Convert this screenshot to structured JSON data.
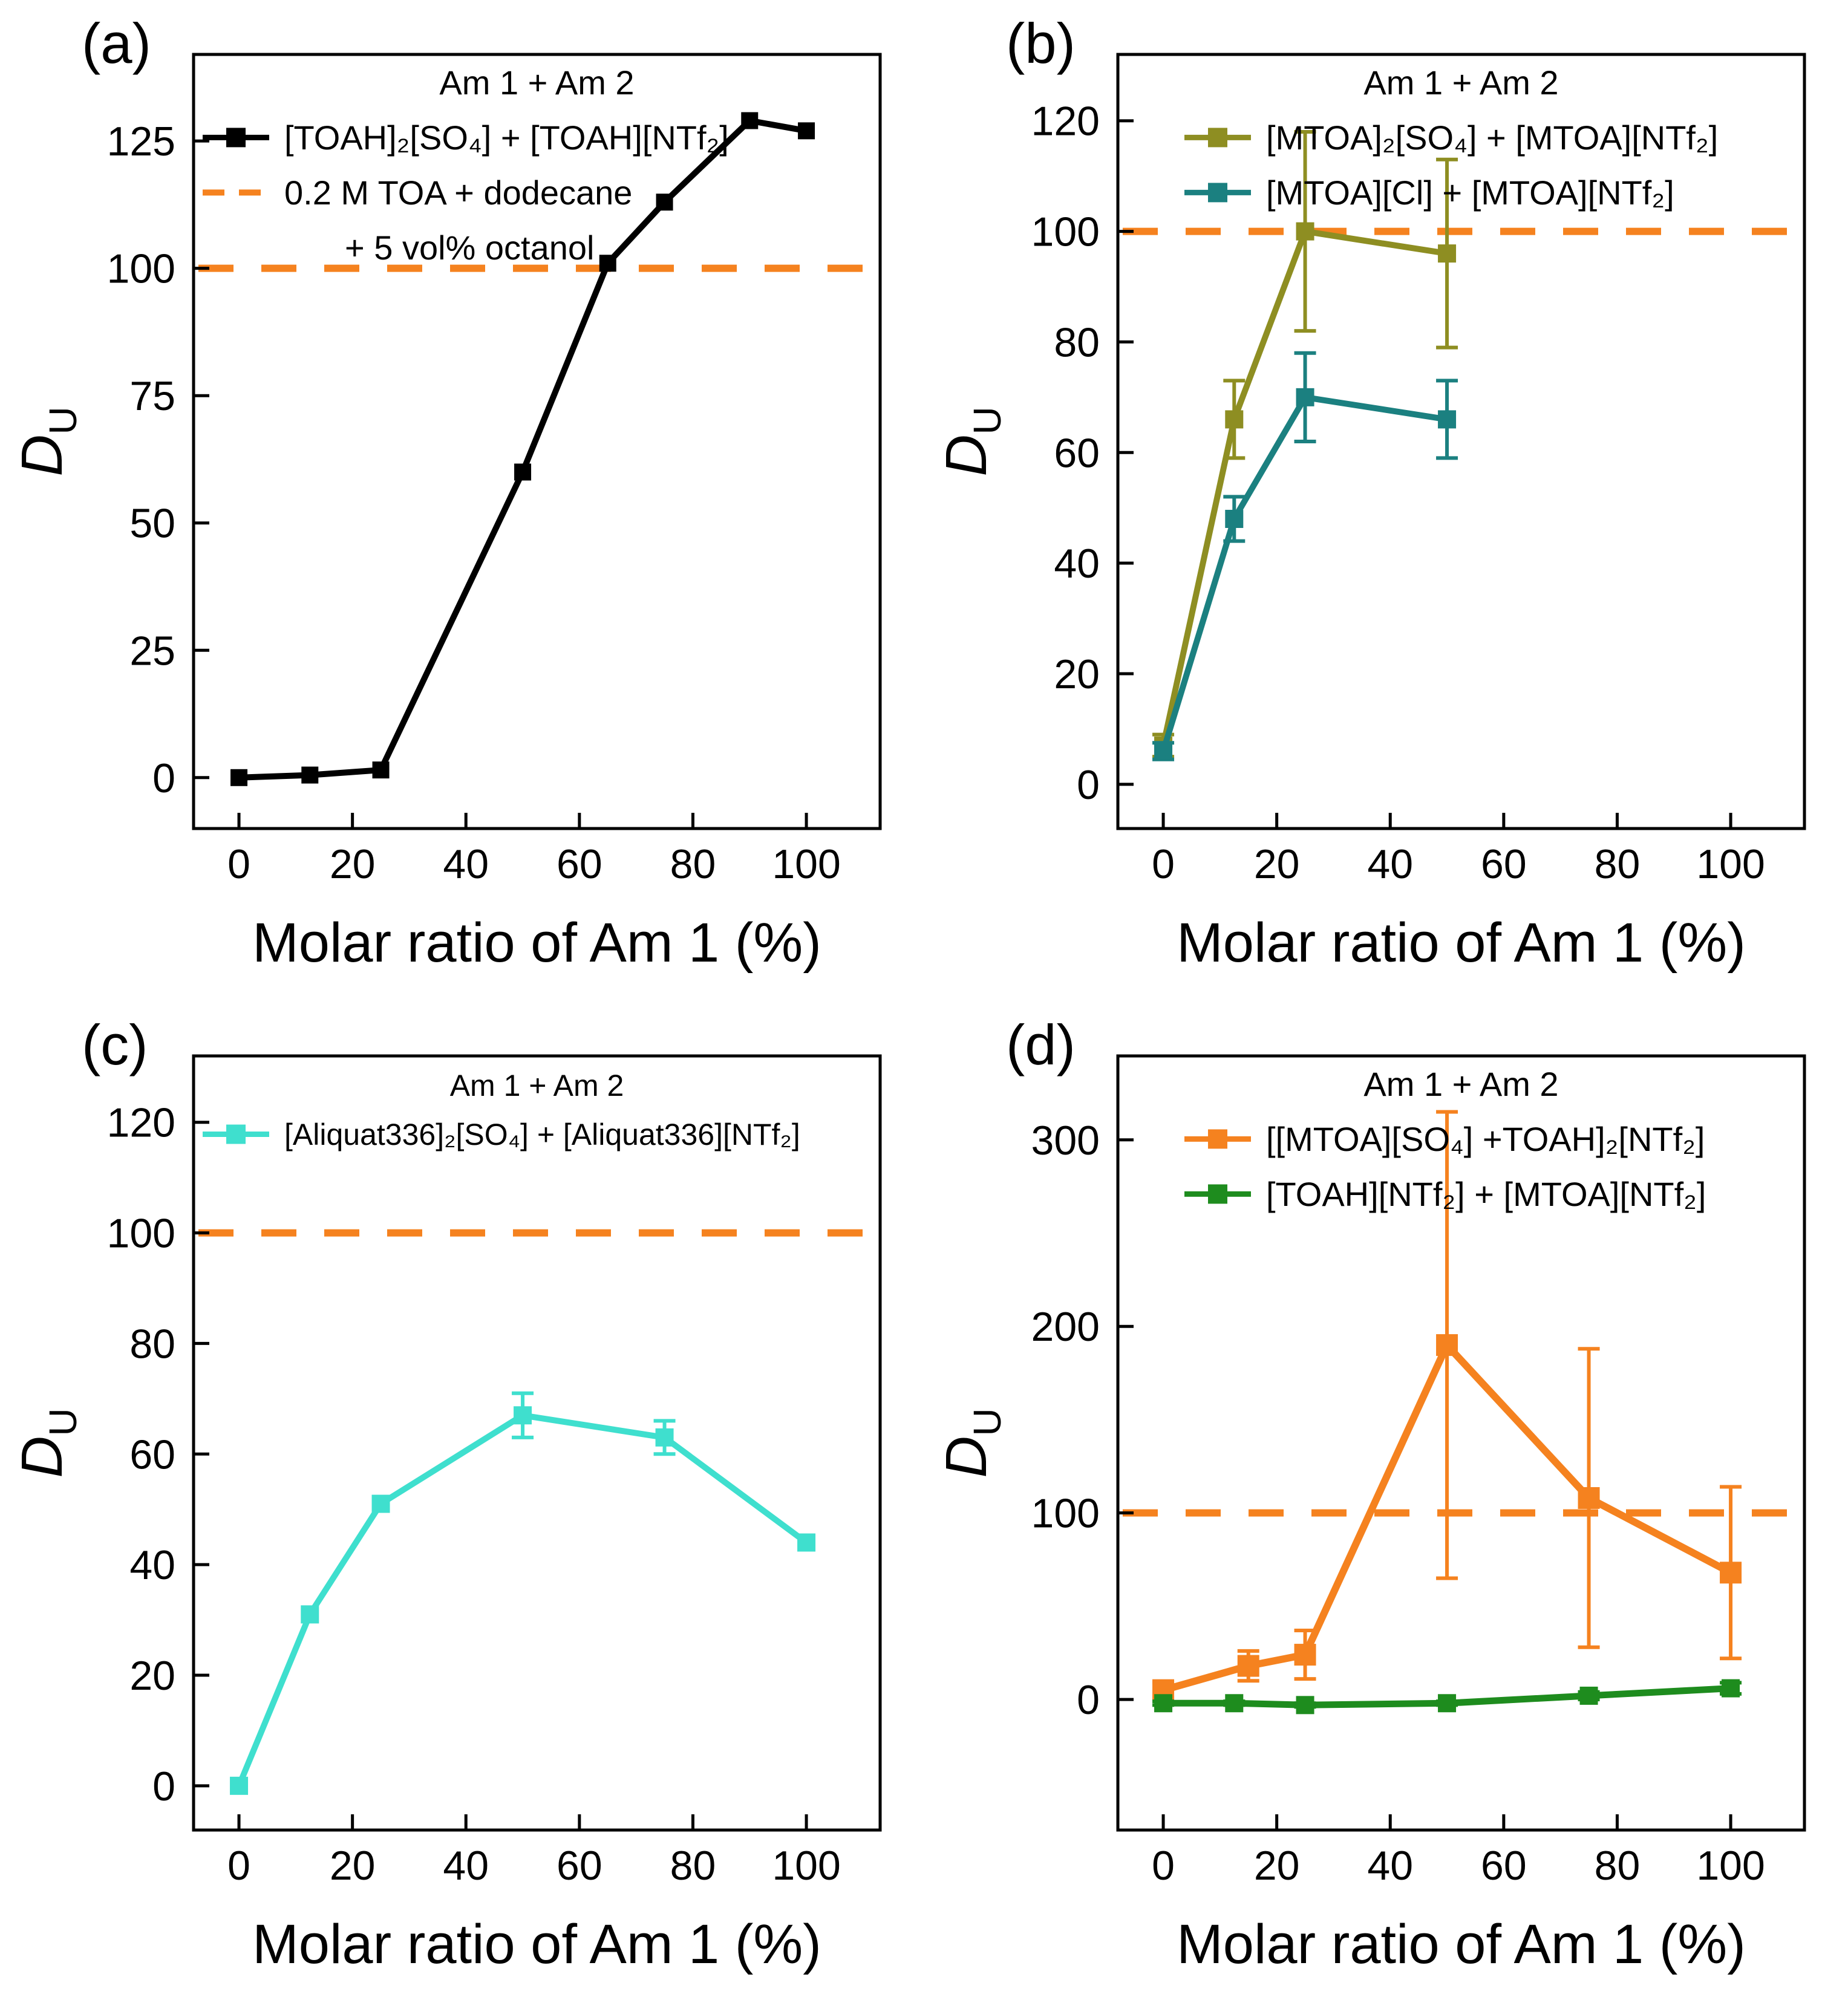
{
  "figure": {
    "background": "#ffffff",
    "xlabel": "Molar ratio of Am 1 (%)",
    "reference_color": "#F5821F"
  },
  "chart_data": [
    {
      "panel_label": "(a)",
      "type": "line",
      "xlabel": "Molar ratio of Am 1 (%)",
      "ylabel": "D",
      "ylabel_sub": "U",
      "xlim": [
        -8,
        113
      ],
      "ylim": [
        -10,
        142
      ],
      "xticks": [
        0,
        20,
        40,
        60,
        80,
        100
      ],
      "yticks": [
        0,
        25,
        50,
        75,
        100,
        125
      ],
      "ref_line": {
        "y": 100,
        "color": "#F5821F"
      },
      "series": [
        {
          "name": "[TOAH]₂[SO₄] + [TOAH][NTf₂]",
          "color": "#000000",
          "line_width": 10,
          "marker_size": 28,
          "x": [
            0,
            12.5,
            25,
            50,
            65,
            75,
            90,
            100
          ],
          "y": [
            0,
            0.5,
            1.5,
            60,
            101,
            113,
            129,
            127
          ]
        }
      ],
      "legend": {
        "title": "Am 1 + Am 2",
        "x": 335,
        "font_size": 56,
        "entries": [
          {
            "marker": "line-square",
            "color": "#000000",
            "label": "[TOAH]₂[SO₄] + [TOAH][NTf₂]"
          },
          {
            "marker": "dash",
            "color": "#F5821F",
            "label": "0.2 M TOA + dodecane",
            "label2": "+ 5 vol% octanol"
          }
        ]
      }
    },
    {
      "panel_label": "(b)",
      "type": "line",
      "xlabel": "Molar ratio of Am 1 (%)",
      "ylabel": "D",
      "ylabel_sub": "U",
      "xlim": [
        -8,
        113
      ],
      "ylim": [
        -8,
        132
      ],
      "xticks": [
        0,
        20,
        40,
        60,
        80,
        100
      ],
      "yticks": [
        0,
        20,
        40,
        60,
        80,
        100,
        120
      ],
      "ref_line": {
        "y": 100,
        "color": "#F5821F"
      },
      "series": [
        {
          "name": "[MTOA]₂[SO₄] + [MTOA][NTf₂]",
          "color": "#8E8E22",
          "line_width": 10,
          "marker_size": 30,
          "x": [
            0,
            12.5,
            25,
            50
          ],
          "y": [
            7,
            66,
            100,
            96
          ],
          "yerr": [
            2,
            7,
            18,
            17
          ]
        },
        {
          "name": "[MTOA][Cl] + [MTOA][NTf₂]",
          "color": "#1B8080",
          "line_width": 10,
          "marker_size": 30,
          "x": [
            0,
            12.5,
            25,
            50
          ],
          "y": [
            6,
            48,
            70,
            66
          ],
          "yerr": [
            1.5,
            4,
            8,
            7
          ]
        }
      ],
      "legend": {
        "title": "Am 1 + Am 2",
        "x": 430,
        "font_size": 56,
        "entries": [
          {
            "marker": "line-square",
            "color": "#8E8E22",
            "label": "[MTOA]₂[SO₄] + [MTOA][NTf₂]"
          },
          {
            "marker": "line-square",
            "color": "#1B8080",
            "label": "[MTOA][Cl] + [MTOA][NTf₂]"
          }
        ]
      }
    },
    {
      "panel_label": "(c)",
      "type": "line",
      "xlabel": "Molar ratio of Am 1 (%)",
      "ylabel": "D",
      "ylabel_sub": "U",
      "xlim": [
        -8,
        113
      ],
      "ylim": [
        -8,
        132
      ],
      "xticks": [
        0,
        20,
        40,
        60,
        80,
        100
      ],
      "yticks": [
        0,
        20,
        40,
        60,
        80,
        100,
        120
      ],
      "ref_line": {
        "y": 100,
        "color": "#F5821F"
      },
      "series": [
        {
          "name": "[Aliquat336]₂[SO₄] + [Aliquat336][NTf₂]",
          "color": "#3FDFCE",
          "line_width": 10,
          "marker_size": 30,
          "x": [
            0,
            12.5,
            25,
            50,
            75,
            100
          ],
          "y": [
            0,
            31,
            51,
            67,
            63,
            44
          ],
          "yerr": [
            0,
            0,
            0,
            4,
            3,
            0
          ]
        }
      ],
      "legend": {
        "title": "Am 1 + Am 2",
        "x": 335,
        "font_size": 50,
        "entries": [
          {
            "marker": "line-square",
            "color": "#3FDFCE",
            "label": "[Aliquat336]₂[SO₄] + [Aliquat336][NTf₂]"
          }
        ]
      }
    },
    {
      "panel_label": "(d)",
      "type": "line",
      "xlabel": "Molar ratio of Am 1 (%)",
      "ylabel": "D",
      "ylabel_sub": "U",
      "xlim": [
        -8,
        113
      ],
      "ylim": [
        -70,
        345
      ],
      "xticks": [
        0,
        20,
        40,
        60,
        80,
        100
      ],
      "yticks": [
        0,
        100,
        200,
        300
      ],
      "ref_line": {
        "y": 100,
        "color": "#F5821F"
      },
      "series": [
        {
          "name": "[[MTOA][SO₄] +TOAH]₂[NTf₂]",
          "color": "#F5821F",
          "line_width": 12,
          "marker_size": 36,
          "x": [
            0,
            15,
            25,
            50,
            75,
            100
          ],
          "y": [
            5,
            18,
            24,
            190,
            108,
            68
          ],
          "yerr": [
            4,
            8,
            13,
            125,
            80,
            46
          ]
        },
        {
          "name": "[TOAH][NTf₂] + [MTOA][NTf₂]",
          "color": "#1E8C1E",
          "line_width": 11,
          "marker_size": 30,
          "x": [
            0,
            12.5,
            25,
            50,
            75,
            100
          ],
          "y": [
            -2,
            -2,
            -3,
            -2,
            2,
            6
          ],
          "yerr": [
            1,
            1,
            1,
            1,
            2,
            3
          ]
        }
      ],
      "legend": {
        "title": "Am 1 + Am 2",
        "x": 430,
        "font_size": 56,
        "entries": [
          {
            "marker": "line-square",
            "color": "#F5821F",
            "label": "[[MTOA][SO₄] +TOAH]₂[NTf₂]"
          },
          {
            "marker": "line-square",
            "color": "#1E8C1E",
            "label": "[TOAH][NTf₂] + [MTOA][NTf₂]"
          }
        ]
      }
    }
  ]
}
